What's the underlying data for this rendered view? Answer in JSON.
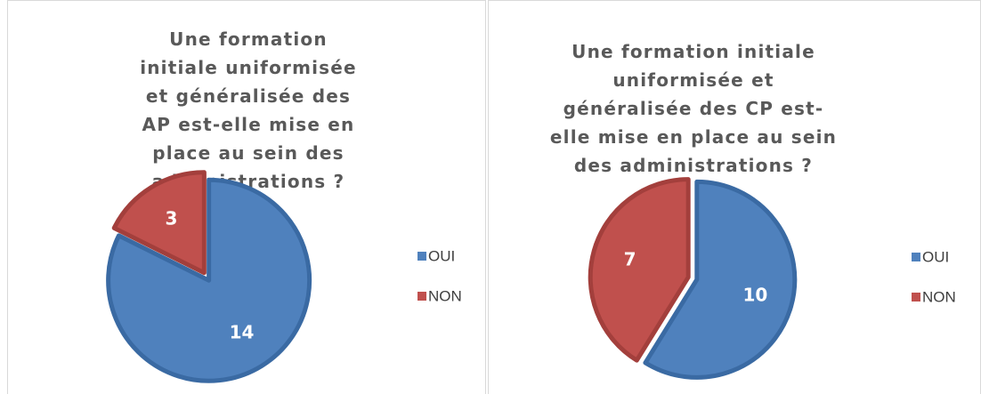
{
  "chart_data": [
    {
      "type": "pie",
      "title": "Une formation initiale uniformisée et généralisée des AP est-elle mise en place au sein des administrations ?",
      "categories": [
        "OUI",
        "NON"
      ],
      "values": [
        14,
        3
      ],
      "colors": [
        "#4f81bd",
        "#c0504d"
      ],
      "legend": "right"
    },
    {
      "type": "pie",
      "title": "Une formation initiale uniformisée et généralisée des CP est-elle mise en place au sein des administrations ?",
      "categories": [
        "OUI",
        "NON"
      ],
      "values": [
        10,
        7
      ],
      "colors": [
        "#4f81bd",
        "#c0504d"
      ],
      "legend": "right"
    }
  ]
}
